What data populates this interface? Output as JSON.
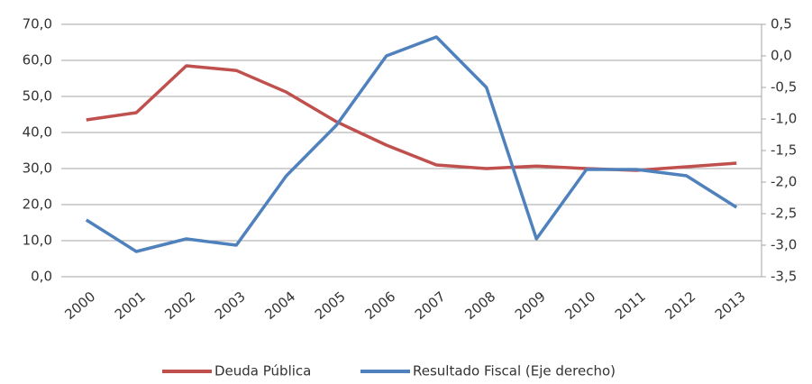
{
  "chart_data": {
    "type": "line",
    "categories": [
      "2000",
      "2001",
      "2002",
      "2003",
      "2004",
      "2005",
      "2006",
      "2007",
      "2008",
      "2009",
      "2010",
      "2011",
      "2012",
      "2013"
    ],
    "series": [
      {
        "name": "Deuda Pública",
        "color": "#c0504d",
        "values": [
          43.5,
          45.5,
          58.5,
          57.2,
          51.2,
          43.0,
          36.5,
          31.0,
          30.0,
          30.7,
          30.0,
          29.5,
          30.5,
          31.5
        ]
      },
      {
        "name": "Resultado Fiscal (Eje derecho)",
        "color": "#4f81bd",
        "axis": "y2",
        "values": [
          -2.6,
          -3.1,
          -2.9,
          -3.0,
          -1.9,
          -1.1,
          0.0,
          0.3,
          -0.5,
          -2.9,
          -1.8,
          -1.8,
          -1.9,
          -2.4
        ]
      }
    ],
    "ylim": [
      0,
      70
    ],
    "yticks": [
      {
        "value": 0,
        "label": "0,0"
      },
      {
        "value": 10,
        "label": "10,0"
      },
      {
        "value": 20,
        "label": "20,0"
      },
      {
        "value": 30,
        "label": "30,0"
      },
      {
        "value": 40,
        "label": "40,0"
      },
      {
        "value": 50,
        "label": "50,0"
      },
      {
        "value": 60,
        "label": "60,0"
      },
      {
        "value": 70,
        "label": "70,0"
      }
    ],
    "y2lim": [
      -3.5,
      0.5
    ],
    "y2ticks": [
      {
        "value": -3.5,
        "label": "-3,5"
      },
      {
        "value": -3,
        "label": "-3,0"
      },
      {
        "value": -2.5,
        "label": "-2,5"
      },
      {
        "value": -2,
        "label": "-2,0"
      },
      {
        "value": -1.5,
        "label": "-1,5"
      },
      {
        "value": -1,
        "label": "-1,0"
      },
      {
        "value": -0.5,
        "label": "-0,5"
      },
      {
        "value": 0,
        "label": "0,0"
      },
      {
        "value": 0.5,
        "label": "0,5"
      }
    ],
    "grid": true,
    "legend": "bottom"
  }
}
